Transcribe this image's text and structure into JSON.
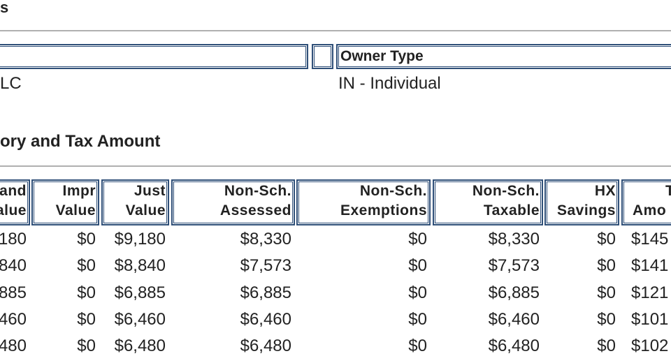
{
  "header": {
    "title": "s"
  },
  "owner_table": {
    "headers": [
      "",
      "",
      "Owner Type"
    ],
    "rows": [
      [
        "LC",
        "IN - Individual"
      ]
    ]
  },
  "section_title": "ory and Tax Amount",
  "tax_table": {
    "headers": [
      [
        "and",
        "alue"
      ],
      [
        "Impr",
        "Value"
      ],
      [
        "Just",
        "Value"
      ],
      [
        "Non-Sch.",
        "Assessed"
      ],
      [
        "Non-Sch.",
        "Exemptions"
      ],
      [
        "Non-Sch.",
        "Taxable"
      ],
      [
        "HX",
        "Savings"
      ],
      [
        "T",
        "Amo"
      ]
    ],
    "rows": [
      [
        "180",
        "$0",
        "$9,180",
        "$8,330",
        "$0",
        "$8,330",
        "$0",
        "$145"
      ],
      [
        "840",
        "$0",
        "$8,840",
        "$7,573",
        "$0",
        "$7,573",
        "$0",
        "$141"
      ],
      [
        "885",
        "$0",
        "$6,885",
        "$6,885",
        "$0",
        "$6,885",
        "$0",
        "$121"
      ],
      [
        "460",
        "$0",
        "$6,460",
        "$6,460",
        "$0",
        "$6,460",
        "$0",
        "$101"
      ],
      [
        "480",
        "$0",
        "$6,480",
        "$6,480",
        "$0",
        "$6,480",
        "$0",
        "$102"
      ]
    ]
  }
}
